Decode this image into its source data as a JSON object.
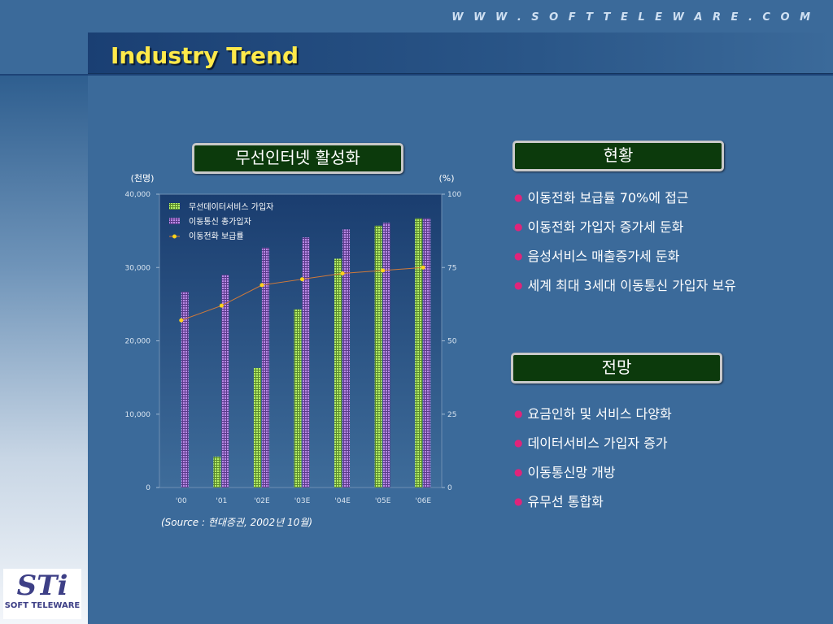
{
  "header": {
    "url": "W W W . S O F T T E L E W A R E . C O M",
    "title": "Industry Trend"
  },
  "logo": {
    "text": "SOFT TELEWARE",
    "mark": "STi"
  },
  "chart_box_title": "무선인터넷 활성화",
  "status": {
    "title": "현황",
    "items": [
      "이동전화 보급률 70%에 접근",
      "이동전화 가입자 증가세 둔화",
      "음성서비스 매출증가세 둔화",
      "세계 최대 3세대 이동통신 가입자 보유"
    ]
  },
  "outlook": {
    "title": "전망",
    "items": [
      "요금인하 및 서비스 다양화",
      "데이터서비스 가입자 증가",
      "이동통신망 개방",
      "유무선 통합화"
    ]
  },
  "source": "(Source : 현대증권, 2002년 10월)",
  "colors": {
    "data_series": "#a8e060",
    "total_series": "#a070d0",
    "line_series": "#ffd21a",
    "line_stroke": "#d07a3a"
  },
  "chart_data": {
    "type": "bar",
    "categories": [
      "'00",
      "'01",
      "'02E",
      "'03E",
      "'04E",
      "'05E",
      "'06E"
    ],
    "series": [
      {
        "name": "무선데이터서비스 가입자",
        "type": "bar",
        "axis": "left",
        "values": [
          0,
          4200,
          16300,
          24300,
          31200,
          35700,
          36700
        ]
      },
      {
        "name": "이동통신 총가입자",
        "type": "bar",
        "axis": "left",
        "values": [
          26700,
          29000,
          32700,
          34100,
          35200,
          36100,
          36700
        ]
      },
      {
        "name": "이동전화 보급률",
        "type": "line",
        "axis": "right",
        "values": [
          57,
          62,
          69,
          71,
          73,
          74,
          75
        ]
      }
    ],
    "ylabel_left": "(천명)",
    "ylabel_right": "(%)",
    "ylim_left": [
      0,
      40000
    ],
    "ylim_right": [
      0,
      100
    ],
    "yticks_left": [
      "0",
      "10,000",
      "20,000",
      "30,000",
      "40,000"
    ],
    "yticks_right": [
      "0",
      "25",
      "50",
      "75",
      "100"
    ],
    "legend_position": "top-left",
    "grid": false
  }
}
